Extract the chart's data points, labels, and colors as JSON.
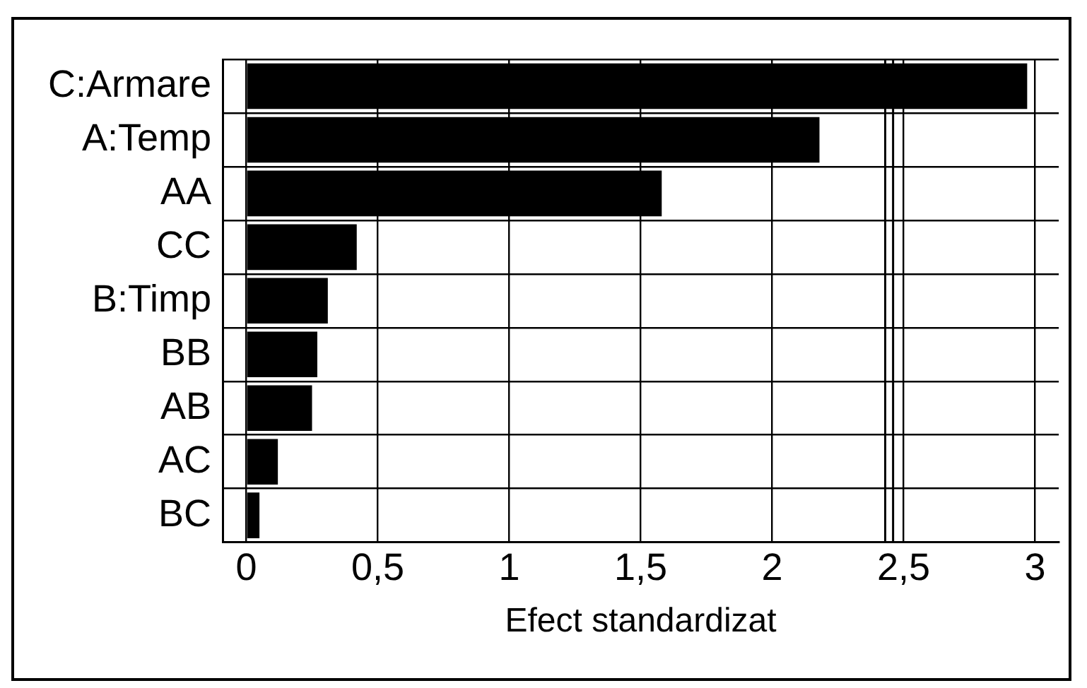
{
  "chart_data": {
    "type": "bar",
    "orientation": "horizontal",
    "xlabel": "Efect standardizat",
    "categories": [
      "C:Armare",
      "A:Temp",
      "AA",
      "CC",
      "B:Timp",
      "BB",
      "AB",
      "AC",
      "BC"
    ],
    "values": [
      2.97,
      2.18,
      1.58,
      0.42,
      0.31,
      0.27,
      0.25,
      0.12,
      0.05
    ],
    "color": "#000000",
    "xlim": [
      -0.09,
      3.09
    ],
    "xticks": [
      {
        "value": 0,
        "label": "0"
      },
      {
        "value": 0.5,
        "label": "0,5"
      },
      {
        "value": 1,
        "label": "1"
      },
      {
        "value": 1.5,
        "label": "1,5"
      },
      {
        "value": 2,
        "label": "2"
      },
      {
        "value": 2.5,
        "label": "2,5"
      },
      {
        "value": 3,
        "label": "3"
      }
    ],
    "grid": true,
    "ref_lines": [
      {
        "axis": "x",
        "value": 2.43,
        "color": "#000000"
      },
      {
        "axis": "x",
        "value": 2.46,
        "color": "#000000"
      }
    ]
  }
}
